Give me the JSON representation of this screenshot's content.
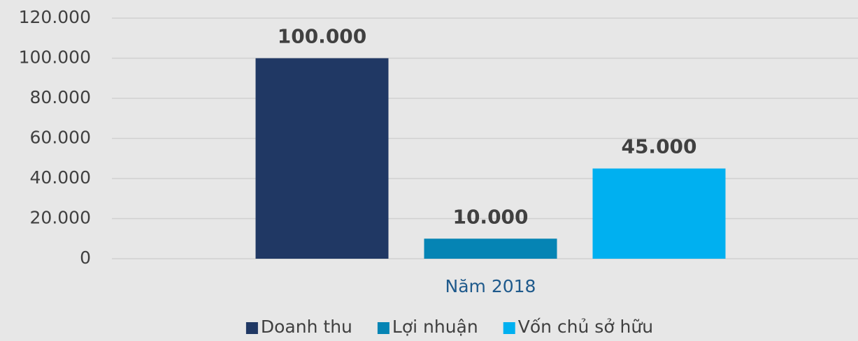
{
  "chart_data": {
    "type": "bar",
    "categories": [
      "Năm 2018"
    ],
    "series": [
      {
        "name": "Doanh thu",
        "color": "#203864",
        "values": [
          100000
        ],
        "value_labels": [
          "100.000"
        ]
      },
      {
        "name": "Lợi nhuận",
        "color": "#0584b4",
        "values": [
          10000
        ],
        "value_labels": [
          "10.000"
        ]
      },
      {
        "name": "Vốn chủ sở hữu",
        "color": "#00b0f0",
        "values": [
          45000
        ],
        "value_labels": [
          "45.000"
        ]
      }
    ],
    "ylim": [
      0,
      120000
    ],
    "yticks": [
      0,
      {
        "value": 20000,
        "label": "20.000"
      },
      {
        "value": 40000,
        "label": "40.000"
      },
      {
        "value": 60000,
        "label": "60.000"
      },
      {
        "value": 80000,
        "label": "80.000"
      },
      {
        "value": 100000,
        "label": "100.000"
      },
      {
        "value": 120000,
        "label": "120.000"
      }
    ],
    "grid": true,
    "legend": "bottom"
  }
}
